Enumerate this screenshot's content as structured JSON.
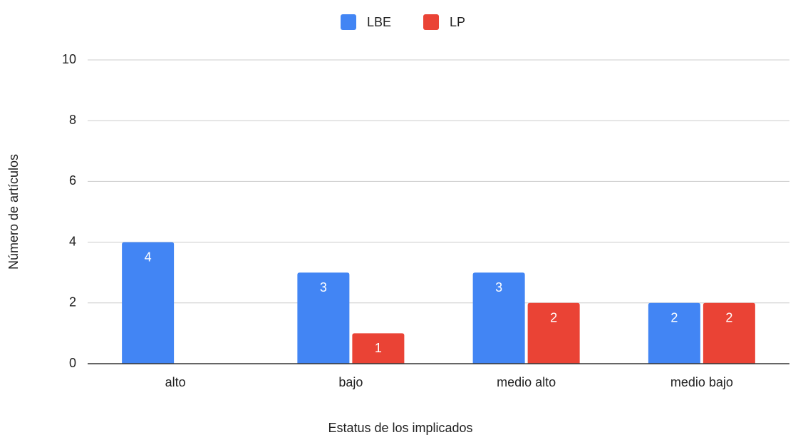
{
  "chart_data": {
    "type": "bar",
    "x_label": "Estatus de los implicados",
    "y_label": "Número de artículos",
    "categories": [
      "alto",
      "bajo",
      "medio alto",
      "medio bajo"
    ],
    "series": [
      {
        "name": "LBE",
        "color": "#4285f4",
        "values": [
          4,
          3,
          3,
          2
        ]
      },
      {
        "name": "LP",
        "color": "#ea4335",
        "values": [
          null,
          1,
          2,
          2
        ]
      }
    ],
    "ylim": [
      0,
      10
    ],
    "yticks": [
      0,
      2,
      4,
      6,
      8,
      10
    ],
    "grid": true,
    "legend": "top"
  }
}
